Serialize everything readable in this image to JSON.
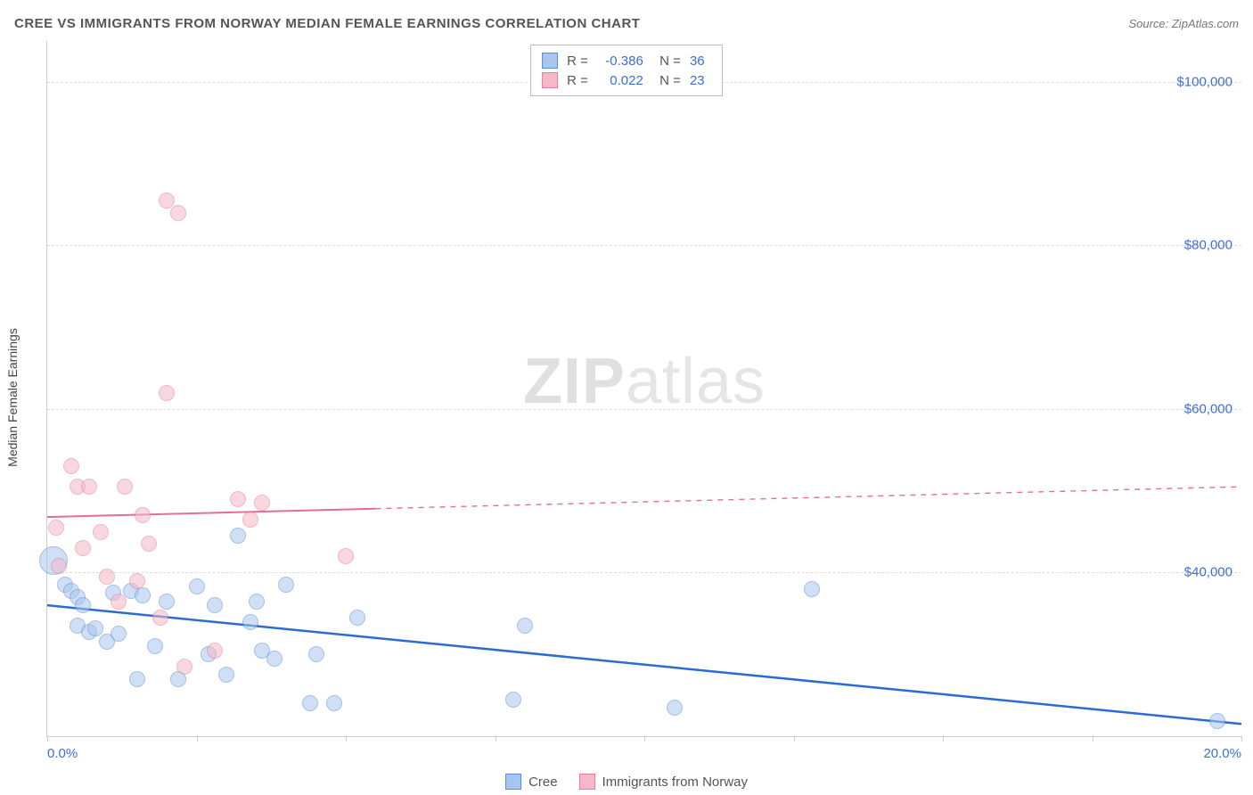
{
  "title": "CREE VS IMMIGRANTS FROM NORWAY MEDIAN FEMALE EARNINGS CORRELATION CHART",
  "source": "Source: ZipAtlas.com",
  "y_axis_title": "Median Female Earnings",
  "watermark_zip": "ZIP",
  "watermark_rest": "atlas",
  "chart": {
    "type": "scatter",
    "xlim": [
      0,
      20
    ],
    "ylim": [
      20000,
      105000
    ],
    "y_ticks": [
      40000,
      60000,
      80000,
      100000
    ],
    "y_tick_labels": [
      "$40,000",
      "$60,000",
      "$80,000",
      "$100,000"
    ],
    "x_ticks": [
      0,
      2.5,
      5,
      7.5,
      10,
      12.5,
      15,
      17.5,
      20
    ],
    "x_tick_labels_visible": {
      "0": "0.0%",
      "20": "20.0%"
    },
    "background_color": "#ffffff",
    "grid_color": "#dddddd",
    "axis_color": "#cccccc",
    "tick_label_color": "#3b6fd8",
    "point_radius": 9,
    "point_border_width": 1.2,
    "series": [
      {
        "name": "Cree",
        "fill_color": "#a8c6ed",
        "stroke_color": "#5a8fd6",
        "fill_opacity": 0.55,
        "R": "-0.386",
        "N": "36",
        "trend": {
          "x1": 0,
          "y1": 36000,
          "x2": 20,
          "y2": 21500,
          "solid_until_x": 20,
          "color": "#2a6bd4",
          "width": 2.5
        },
        "points": [
          {
            "x": 0.1,
            "y": 41500,
            "r": 16
          },
          {
            "x": 0.3,
            "y": 38500
          },
          {
            "x": 0.4,
            "y": 37800
          },
          {
            "x": 0.5,
            "y": 37000
          },
          {
            "x": 0.6,
            "y": 36000
          },
          {
            "x": 0.5,
            "y": 33500
          },
          {
            "x": 0.7,
            "y": 32800
          },
          {
            "x": 0.8,
            "y": 33200
          },
          {
            "x": 1.0,
            "y": 31500
          },
          {
            "x": 1.1,
            "y": 37500
          },
          {
            "x": 1.2,
            "y": 32500
          },
          {
            "x": 1.4,
            "y": 37800
          },
          {
            "x": 1.5,
            "y": 27000
          },
          {
            "x": 1.6,
            "y": 37200
          },
          {
            "x": 1.8,
            "y": 31000
          },
          {
            "x": 2.0,
            "y": 36500
          },
          {
            "x": 2.2,
            "y": 27000
          },
          {
            "x": 2.5,
            "y": 38300
          },
          {
            "x": 2.7,
            "y": 30000
          },
          {
            "x": 2.8,
            "y": 36000
          },
          {
            "x": 3.0,
            "y": 27500
          },
          {
            "x": 3.2,
            "y": 44500
          },
          {
            "x": 3.4,
            "y": 34000
          },
          {
            "x": 3.5,
            "y": 36500
          },
          {
            "x": 3.6,
            "y": 30500
          },
          {
            "x": 3.8,
            "y": 29500
          },
          {
            "x": 4.0,
            "y": 38500
          },
          {
            "x": 4.4,
            "y": 24000
          },
          {
            "x": 4.5,
            "y": 30000
          },
          {
            "x": 4.8,
            "y": 24000
          },
          {
            "x": 5.2,
            "y": 34500
          },
          {
            "x": 7.8,
            "y": 24500
          },
          {
            "x": 8.0,
            "y": 33500
          },
          {
            "x": 10.5,
            "y": 23500
          },
          {
            "x": 12.8,
            "y": 38000
          },
          {
            "x": 19.6,
            "y": 21800
          }
        ]
      },
      {
        "name": "Immigrants from Norway",
        "fill_color": "#f4b8c6",
        "stroke_color": "#e87ca0",
        "fill_opacity": 0.55,
        "R": "0.022",
        "N": "23",
        "trend": {
          "x1": 0,
          "y1": 46800,
          "x2": 20,
          "y2": 50500,
          "solid_until_x": 5.5,
          "color": "#e36f93",
          "width": 2
        },
        "points": [
          {
            "x": 0.15,
            "y": 45500
          },
          {
            "x": 0.2,
            "y": 40800
          },
          {
            "x": 0.4,
            "y": 53000
          },
          {
            "x": 0.5,
            "y": 50500
          },
          {
            "x": 0.6,
            "y": 43000
          },
          {
            "x": 0.7,
            "y": 50500
          },
          {
            "x": 0.9,
            "y": 45000
          },
          {
            "x": 1.0,
            "y": 39500
          },
          {
            "x": 1.2,
            "y": 36500
          },
          {
            "x": 1.3,
            "y": 50500
          },
          {
            "x": 1.5,
            "y": 39000
          },
          {
            "x": 1.6,
            "y": 47000
          },
          {
            "x": 1.7,
            "y": 43500
          },
          {
            "x": 1.9,
            "y": 34500
          },
          {
            "x": 2.0,
            "y": 62000
          },
          {
            "x": 2.0,
            "y": 85500
          },
          {
            "x": 2.2,
            "y": 84000
          },
          {
            "x": 2.3,
            "y": 28500
          },
          {
            "x": 2.8,
            "y": 30500
          },
          {
            "x": 3.2,
            "y": 49000
          },
          {
            "x": 3.4,
            "y": 46500
          },
          {
            "x": 3.6,
            "y": 48500
          },
          {
            "x": 5.0,
            "y": 42000
          }
        ]
      }
    ]
  },
  "bottom_legend": [
    {
      "label": "Cree",
      "fill": "#a8c6ed",
      "stroke": "#5a8fd6"
    },
    {
      "label": "Immigrants from Norway",
      "fill": "#f4b8c6",
      "stroke": "#e87ca0"
    }
  ]
}
